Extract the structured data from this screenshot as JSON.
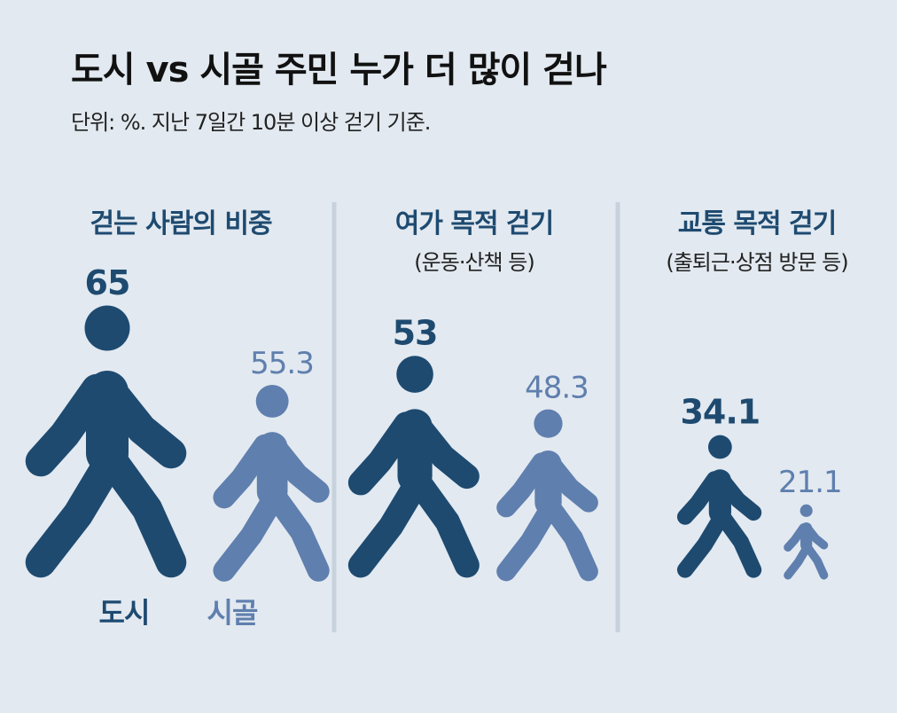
{
  "title": "도시 vs 시골 주민 누가 더 많이 걷나",
  "subtitle": "단위: %. 지난 7일간 10분 이상 걷기 기준.",
  "legend": {
    "city": "도시",
    "rural": "시골"
  },
  "colors": {
    "city": "#1e4a70",
    "rural": "#5f7fae",
    "divider": "#c7d2dd"
  },
  "chart_data": {
    "type": "bar",
    "categories": [
      "걷는 사람의 비중",
      "여가 목적 걷기",
      "교통 목적 걷기"
    ],
    "category_notes": [
      "",
      "(운동·산책 등)",
      "(출퇴근·상점 방문 등)"
    ],
    "series": [
      {
        "name": "도시",
        "values": [
          65,
          53,
          34.1
        ],
        "labels": [
          "65",
          "53",
          "34.1"
        ]
      },
      {
        "name": "시골",
        "values": [
          55.3,
          48.3,
          21.1
        ],
        "labels": [
          "55.3",
          "48.3",
          "21.1"
        ]
      }
    ],
    "ylim": [
      0,
      65
    ]
  }
}
